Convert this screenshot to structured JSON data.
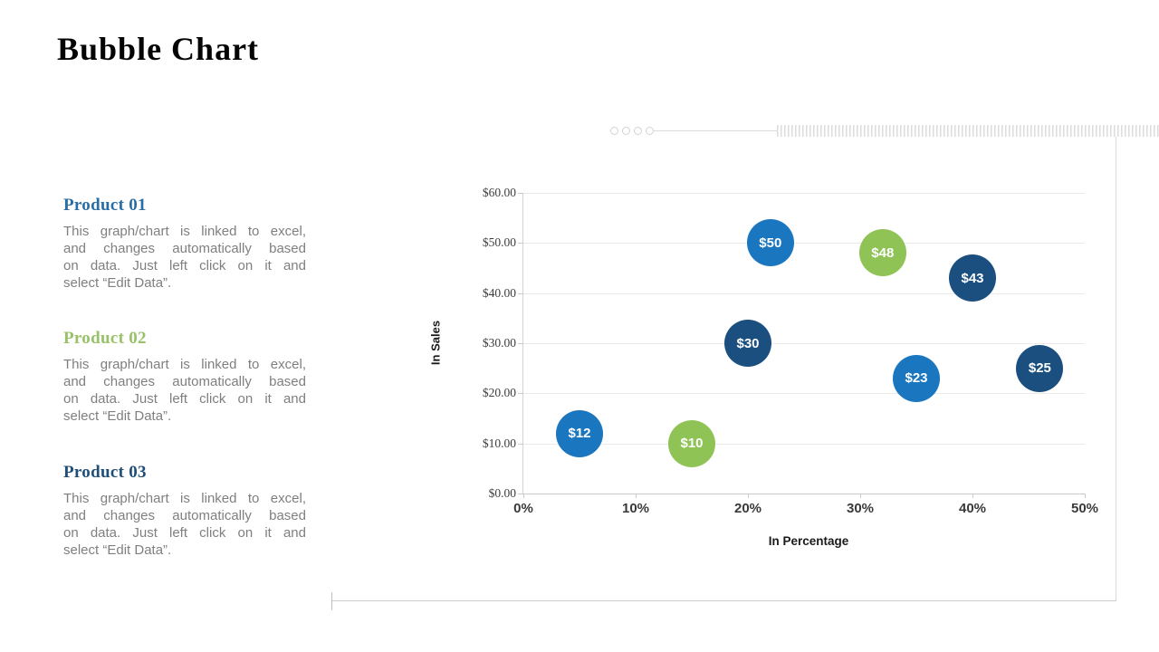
{
  "slide": {
    "title": "Bubble Chart"
  },
  "products": [
    {
      "name": "Product 01",
      "color": "#2a6da4",
      "lines": [
        "This graph/chart is linked to excel,",
        "and changes automatically based",
        "on data. Just left click on it and",
        "select “Edit Data”."
      ]
    },
    {
      "name": "Product 02",
      "color": "#98c268",
      "lines": [
        "This graph/chart is linked to excel,",
        "and changes automatically based",
        "on data. Just left click on it and",
        "select “Edit Data”."
      ]
    },
    {
      "name": "Product 03",
      "color": "#1f4e79",
      "lines": [
        "This graph/chart is linked to excel,",
        "and changes automatically based",
        "on data. Just left click on it and",
        "select “Edit Data”."
      ]
    }
  ],
  "chart_data": {
    "type": "scatter",
    "subtype": "bubble",
    "title": "",
    "xlabel": "In Percentage",
    "ylabel": "In Sales",
    "xlim": [
      0,
      50
    ],
    "ylim": [
      0,
      60
    ],
    "grid": true,
    "legend": "none",
    "x_tick_values": [
      0,
      10,
      20,
      30,
      40,
      50
    ],
    "x_tick_labels": [
      "0%",
      "10%",
      "20%",
      "30%",
      "40%",
      "50%"
    ],
    "y_tick_values": [
      0,
      10,
      20,
      30,
      40,
      50,
      60
    ],
    "y_tick_labels": [
      "$0.00",
      "$10.00",
      "$20.00",
      "$30.00",
      "$40.00",
      "$50.00",
      "$60.00"
    ],
    "series": [
      {
        "name": "blue",
        "color": "#1b76c0",
        "points": [
          {
            "x": 5,
            "y": 12,
            "label": "$12"
          },
          {
            "x": 22,
            "y": 50,
            "label": "$50"
          },
          {
            "x": 35,
            "y": 23,
            "label": "$23"
          }
        ]
      },
      {
        "name": "green",
        "color": "#90c355",
        "points": [
          {
            "x": 15,
            "y": 10,
            "label": "$10"
          },
          {
            "x": 32,
            "y": 48,
            "label": "$48"
          }
        ]
      },
      {
        "name": "dark-blue",
        "color": "#1a4f80",
        "points": [
          {
            "x": 20,
            "y": 30,
            "label": "$30"
          },
          {
            "x": 40,
            "y": 43,
            "label": "$43"
          },
          {
            "x": 46,
            "y": 25,
            "label": "$25"
          }
        ]
      }
    ]
  }
}
